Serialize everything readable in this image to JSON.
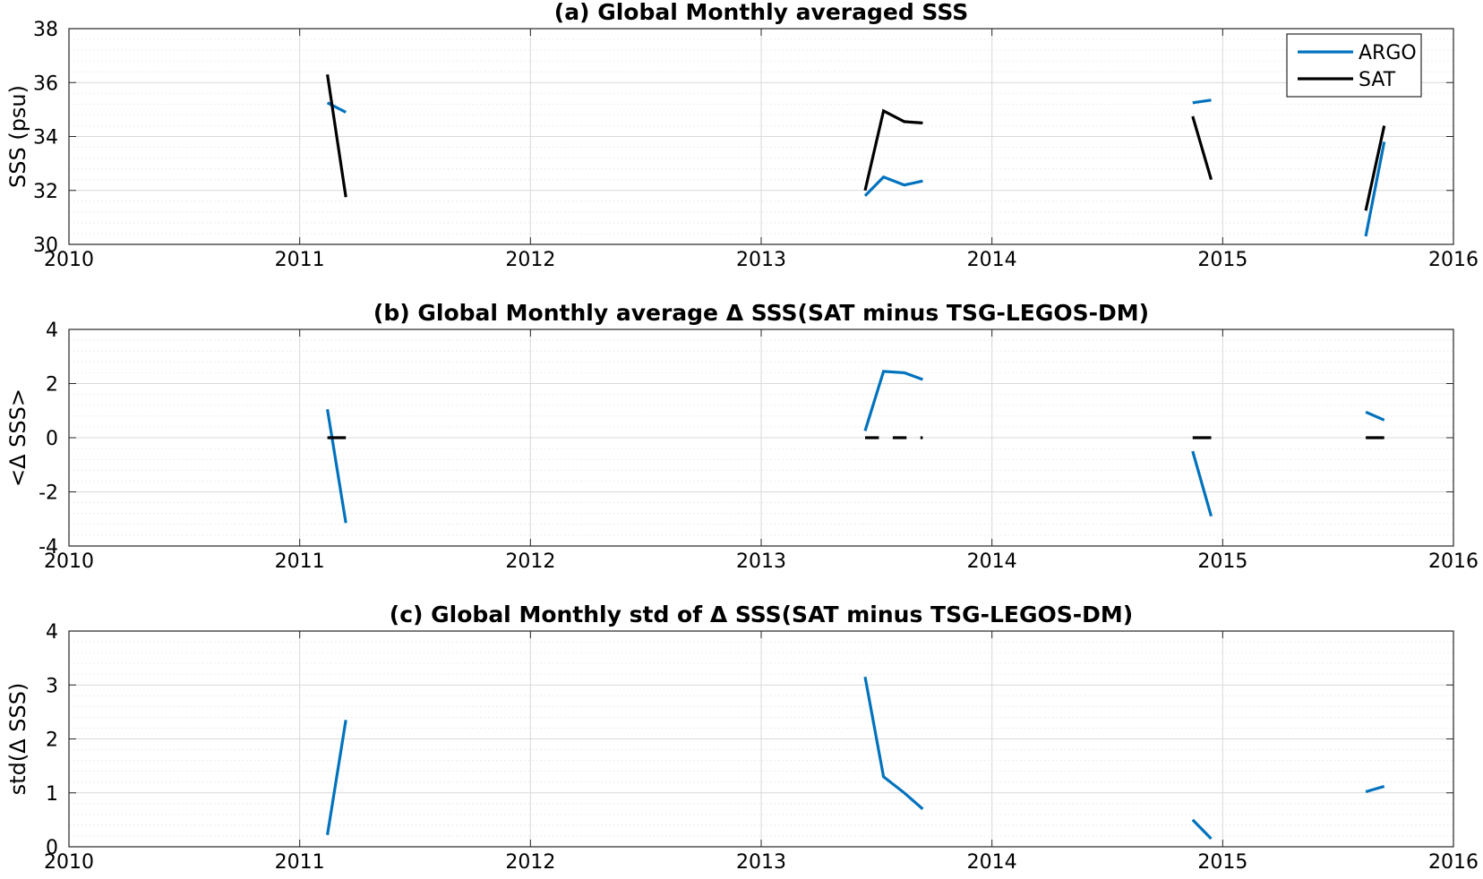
{
  "colors": {
    "argo": "#0072BD",
    "sat": "#000000",
    "grid_major": "#d9d9d9",
    "grid_minor": "#e6e6e6"
  },
  "chart_data": [
    {
      "type": "line",
      "title": "(a) Global Monthly averaged SSS",
      "ylabel": "SSS (psu)",
      "xlim": [
        2010,
        2016
      ],
      "ylim": [
        30,
        38
      ],
      "xticks": [
        "2010",
        "2011",
        "2012",
        "2013",
        "2014",
        "2015",
        "2016"
      ],
      "yticks": [
        "30",
        "32",
        "34",
        "36",
        "38"
      ],
      "grid": "on",
      "legend": {
        "placement": "top-right",
        "entries": [
          "ARGO",
          "SAT"
        ]
      },
      "series": [
        {
          "name": "ARGO",
          "color": "argo",
          "segments": [
            [
              [
                2011.12,
                35.25
              ],
              [
                2011.2,
                34.9
              ]
            ],
            [
              [
                2013.45,
                31.8
              ],
              [
                2013.53,
                32.5
              ],
              [
                2013.62,
                32.2
              ],
              [
                2013.7,
                32.35
              ]
            ],
            [
              [
                2014.87,
                35.25
              ],
              [
                2014.95,
                35.35
              ]
            ],
            [
              [
                2015.62,
                30.3
              ],
              [
                2015.7,
                33.8
              ]
            ]
          ]
        },
        {
          "name": "SAT",
          "color": "sat",
          "segments": [
            [
              [
                2011.12,
                36.3
              ],
              [
                2011.2,
                31.75
              ]
            ],
            [
              [
                2013.45,
                32.0
              ],
              [
                2013.53,
                34.95
              ],
              [
                2013.62,
                34.55
              ],
              [
                2013.7,
                34.5
              ]
            ],
            [
              [
                2014.87,
                34.75
              ],
              [
                2014.95,
                32.4
              ]
            ],
            [
              [
                2015.62,
                31.25
              ],
              [
                2015.7,
                34.4
              ]
            ]
          ]
        }
      ]
    },
    {
      "type": "line",
      "title": "(b) Global Monthly average Δ SSS(SAT minus TSG-LEGOS-DM)",
      "ylabel": "<Δ SSS>",
      "xlim": [
        2010,
        2016
      ],
      "ylim": [
        -4,
        4
      ],
      "xticks": [
        "2010",
        "2011",
        "2012",
        "2013",
        "2014",
        "2015",
        "2016"
      ],
      "yticks": [
        "-4",
        "-2",
        "0",
        "2",
        "4"
      ],
      "grid": "on",
      "series": [
        {
          "name": "ARGO",
          "color": "argo",
          "segments": [
            [
              [
                2011.12,
                1.05
              ],
              [
                2011.2,
                -3.15
              ]
            ],
            [
              [
                2013.45,
                0.25
              ],
              [
                2013.53,
                2.45
              ],
              [
                2013.62,
                2.4
              ],
              [
                2013.7,
                2.15
              ]
            ],
            [
              [
                2014.87,
                -0.5
              ],
              [
                2014.95,
                -2.9
              ]
            ],
            [
              [
                2015.62,
                0.95
              ],
              [
                2015.7,
                0.65
              ]
            ]
          ]
        },
        {
          "name": "SAT",
          "color": "sat",
          "segments": [
            [
              [
                2011.12,
                0
              ],
              [
                2011.2,
                0
              ]
            ],
            [
              [
                2013.45,
                0
              ],
              [
                2013.51,
                0
              ]
            ],
            [
              [
                2013.57,
                0
              ],
              [
                2013.63,
                0
              ]
            ],
            [
              [
                2013.69,
                0
              ],
              [
                2013.7,
                0
              ]
            ],
            [
              [
                2014.87,
                0
              ],
              [
                2014.95,
                0
              ]
            ],
            [
              [
                2015.62,
                0
              ],
              [
                2015.7,
                0
              ]
            ]
          ]
        }
      ]
    },
    {
      "type": "line",
      "title": "(c) Global Monthly std of Δ SSS(SAT minus TSG-LEGOS-DM)",
      "ylabel": "std(Δ SSS)",
      "xlim": [
        2010,
        2016
      ],
      "ylim": [
        0,
        4
      ],
      "xticks": [
        "2010",
        "2011",
        "2012",
        "2013",
        "2014",
        "2015",
        "2016"
      ],
      "yticks": [
        "0",
        "1",
        "2",
        "3",
        "4"
      ],
      "grid": "on",
      "series": [
        {
          "name": "ARGO",
          "color": "argo",
          "segments": [
            [
              [
                2011.12,
                0.22
              ],
              [
                2011.2,
                2.35
              ]
            ],
            [
              [
                2013.45,
                3.15
              ],
              [
                2013.53,
                1.3
              ],
              [
                2013.62,
                1.0
              ],
              [
                2013.7,
                0.7
              ]
            ],
            [
              [
                2014.87,
                0.5
              ],
              [
                2014.95,
                0.15
              ]
            ],
            [
              [
                2015.62,
                1.02
              ],
              [
                2015.7,
                1.12
              ]
            ]
          ]
        }
      ]
    }
  ]
}
